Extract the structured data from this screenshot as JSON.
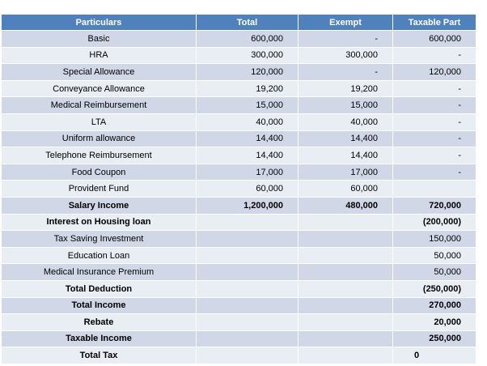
{
  "table": {
    "header": [
      "Particulars",
      "Total",
      "Exempt",
      "Taxable Part"
    ],
    "rows": [
      [
        "Basic",
        "600,000",
        "-",
        "600,000"
      ],
      [
        "HRA",
        "300,000",
        "300,000",
        "-"
      ],
      [
        "Special Allowance",
        "120,000",
        "-",
        "120,000"
      ],
      [
        "Conveyance Allowance",
        "19,200",
        "19,200",
        "-"
      ],
      [
        "Medical Reimbursement",
        "15,000",
        "15,000",
        "-"
      ],
      [
        "LTA",
        "40,000",
        "40,000",
        "-"
      ],
      [
        "Uniform allowance",
        "14,400",
        "14,400",
        "-"
      ],
      [
        "Telephone Reimbursement",
        "14,400",
        "14,400",
        "-"
      ],
      [
        "Food Coupon",
        "17,000",
        "17,000",
        "-"
      ],
      [
        "Provident Fund",
        "60,000",
        "60,000",
        null
      ],
      [
        "Salary Income",
        "1,200,000",
        "480,000",
        "720,000"
      ],
      [
        "Interest on Housing loan",
        null,
        null,
        "(200,000)"
      ],
      [
        "Tax Saving Investment",
        null,
        null,
        "150,000"
      ],
      [
        "Education Loan",
        null,
        null,
        "50,000"
      ],
      [
        "Medical Insurance Premium",
        null,
        null,
        "50,000"
      ],
      [
        "Total Deduction",
        null,
        null,
        "(250,000)"
      ],
      [
        "Total Income",
        null,
        null,
        "270,000"
      ],
      [
        "Rebate",
        null,
        null,
        "20,000"
      ],
      [
        "Taxable Income",
        null,
        null,
        "250,000"
      ],
      [
        "Total Tax",
        null,
        null,
        "0"
      ]
    ]
  }
}
